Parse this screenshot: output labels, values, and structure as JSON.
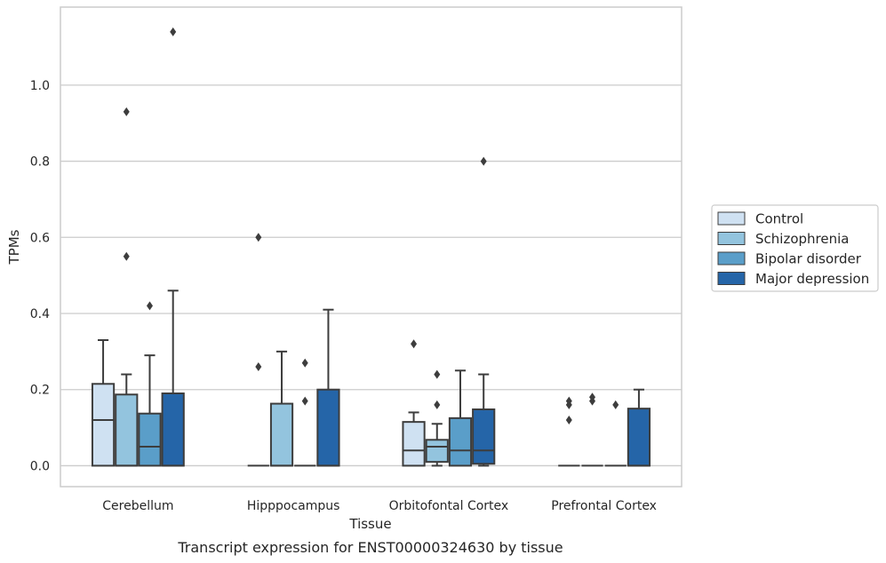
{
  "chart_data": {
    "type": "boxplot",
    "title": "",
    "caption": "Transcript expression for ENST00000324630 by tissue",
    "xlabel": "Tissue",
    "ylabel": "TPMs",
    "ylim": [
      -0.055,
      1.205
    ],
    "yticks": [
      "0.0",
      "0.2",
      "0.4",
      "0.6",
      "0.8",
      "1.0"
    ],
    "grid": true,
    "legend_position": "right",
    "categories": [
      "Cerebellum",
      "Hipppocampus",
      "Orbitofontal Cortex",
      "Prefrontal Cortex"
    ],
    "series": [
      {
        "name": "Control",
        "color": "#cfe1f2",
        "boxes": [
          {
            "min": 0,
            "q1": 0,
            "median": 0.12,
            "q3": 0.215,
            "max": 0.33,
            "outliers": []
          },
          {
            "min": 0,
            "q1": 0,
            "median": 0,
            "q3": 0,
            "max": 0,
            "outliers": [
              0.26,
              0.6
            ]
          },
          {
            "min": 0,
            "q1": 0,
            "median": 0.04,
            "q3": 0.115,
            "max": 0.14,
            "outliers": [
              0.32
            ]
          },
          {
            "min": 0,
            "q1": 0,
            "median": 0,
            "q3": 0,
            "max": 0,
            "outliers": [
              0.12,
              0.16,
              0.17
            ]
          }
        ]
      },
      {
        "name": "Schizophrenia",
        "color": "#93c4de",
        "boxes": [
          {
            "min": 0,
            "q1": 0,
            "median": 0,
            "q3": 0.187,
            "max": 0.24,
            "outliers": [
              0.55,
              0.93
            ]
          },
          {
            "min": 0,
            "q1": 0,
            "median": 0,
            "q3": 0.163,
            "max": 0.3,
            "outliers": []
          },
          {
            "min": 0,
            "q1": 0.01,
            "median": 0.05,
            "q3": 0.068,
            "max": 0.11,
            "outliers": [
              0.16,
              0.24
            ]
          },
          {
            "min": 0,
            "q1": 0,
            "median": 0,
            "q3": 0,
            "max": 0,
            "outliers": [
              0.17,
              0.18
            ]
          }
        ]
      },
      {
        "name": "Bipolar disorder",
        "color": "#5a9ec9",
        "boxes": [
          {
            "min": 0,
            "q1": 0,
            "median": 0.05,
            "q3": 0.137,
            "max": 0.29,
            "outliers": [
              0.42
            ]
          },
          {
            "min": 0,
            "q1": 0,
            "median": 0,
            "q3": 0,
            "max": 0,
            "outliers": [
              0.17,
              0.27
            ]
          },
          {
            "min": 0,
            "q1": 0,
            "median": 0.04,
            "q3": 0.125,
            "max": 0.25,
            "outliers": []
          },
          {
            "min": 0,
            "q1": 0,
            "median": 0,
            "q3": 0,
            "max": 0,
            "outliers": [
              0.16
            ]
          }
        ]
      },
      {
        "name": "Major depression",
        "color": "#2565a8",
        "boxes": [
          {
            "min": 0,
            "q1": 0,
            "median": 0,
            "q3": 0.19,
            "max": 0.46,
            "outliers": [
              1.14
            ]
          },
          {
            "min": 0,
            "q1": 0,
            "median": 0,
            "q3": 0.2,
            "max": 0.41,
            "outliers": []
          },
          {
            "min": 0,
            "q1": 0.005,
            "median": 0.04,
            "q3": 0.148,
            "max": 0.24,
            "outliers": [
              0.8
            ]
          },
          {
            "min": 0,
            "q1": 0,
            "median": 0,
            "q3": 0.15,
            "max": 0.2,
            "outliers": []
          }
        ]
      }
    ]
  }
}
